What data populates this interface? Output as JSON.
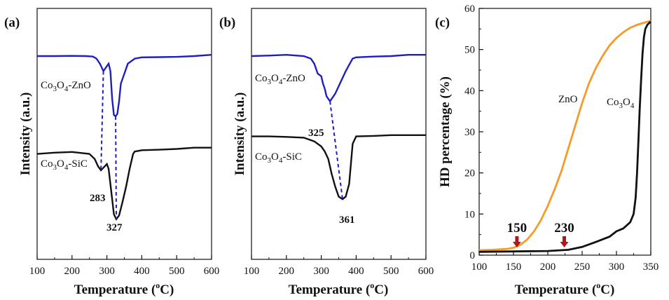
{
  "chart_data": [
    {
      "type": "line",
      "panel_label": "(a)",
      "xlabel": "Temperature (",
      "xlabel_sup": "o",
      "xlabel_end": "C)",
      "ylabel": "Intensity (a.u.)",
      "xlim": [
        100,
        600
      ],
      "xticks": [
        "100",
        "200",
        "300",
        "400",
        "500",
        "600"
      ],
      "series": [
        {
          "name": "Co3O4-ZnO",
          "color": "#1f1fbf",
          "x": [
            100,
            150,
            200,
            240,
            260,
            270,
            280,
            290,
            300,
            305,
            310,
            315,
            320,
            325,
            330,
            335,
            340,
            350,
            360,
            380,
            400,
            450,
            500,
            550,
            600
          ],
          "y": [
            0.81,
            0.81,
            0.811,
            0.81,
            0.808,
            0.8,
            0.78,
            0.75,
            0.77,
            0.78,
            0.75,
            0.64,
            0.575,
            0.57,
            0.58,
            0.63,
            0.7,
            0.74,
            0.78,
            0.8,
            0.805,
            0.806,
            0.807,
            0.81,
            0.815
          ]
        },
        {
          "name": "Co3O4-SiC",
          "color": "#111111",
          "x": [
            100,
            150,
            200,
            250,
            265,
            275,
            283,
            290,
            300,
            305,
            310,
            315,
            320,
            327,
            335,
            345,
            355,
            365,
            375,
            380,
            390,
            400,
            450,
            500,
            550,
            600
          ],
          "y": [
            0.42,
            0.425,
            0.428,
            0.42,
            0.4,
            0.37,
            0.355,
            0.365,
            0.38,
            0.36,
            0.3,
            0.24,
            0.18,
            0.16,
            0.175,
            0.23,
            0.29,
            0.36,
            0.42,
            0.43,
            0.432,
            0.435,
            0.437,
            0.44,
            0.445,
            0.445
          ]
        }
      ],
      "annotations": [
        {
          "text": "283",
          "x": 283
        },
        {
          "text": "327",
          "x": 327
        }
      ],
      "series_labels": [
        {
          "main": "Co",
          "sub1": "3",
          "mid": "O",
          "sub2": "4",
          "tail": "-ZnO"
        },
        {
          "main": "Co",
          "sub1": "3",
          "mid": "O",
          "sub2": "4",
          "tail": "-SiC"
        }
      ]
    },
    {
      "type": "line",
      "panel_label": "(b)",
      "xlabel": "Temperature (",
      "xlabel_sup": "o",
      "xlabel_end": "C)",
      "ylabel": "Intensity (a.u.)",
      "xlim": [
        100,
        600
      ],
      "xticks": [
        "100",
        "200",
        "300",
        "400",
        "500",
        "600"
      ],
      "series": [
        {
          "name": "Co3O4-ZnO",
          "color": "#1f1fbf",
          "x": [
            100,
            150,
            200,
            250,
            270,
            280,
            290,
            300,
            305,
            310,
            315,
            320,
            325,
            330,
            340,
            350,
            360,
            370,
            380,
            390,
            400,
            450,
            500,
            550,
            600
          ],
          "y": [
            0.81,
            0.812,
            0.815,
            0.81,
            0.8,
            0.78,
            0.74,
            0.73,
            0.7,
            0.68,
            0.65,
            0.64,
            0.63,
            0.64,
            0.66,
            0.69,
            0.72,
            0.75,
            0.775,
            0.8,
            0.805,
            0.808,
            0.81,
            0.815,
            0.815
          ]
        },
        {
          "name": "Co3O4-SiC",
          "color": "#111111",
          "x": [
            100,
            150,
            200,
            250,
            280,
            300,
            310,
            320,
            330,
            340,
            350,
            361,
            370,
            380,
            385,
            390,
            400,
            450,
            500,
            550,
            600
          ],
          "y": [
            0.49,
            0.49,
            0.488,
            0.485,
            0.47,
            0.45,
            0.43,
            0.4,
            0.34,
            0.29,
            0.25,
            0.24,
            0.25,
            0.3,
            0.38,
            0.46,
            0.49,
            0.492,
            0.495,
            0.495,
            0.495
          ]
        }
      ],
      "annotations": [
        {
          "text": "325",
          "x": 325
        },
        {
          "text": "361",
          "x": 361
        }
      ],
      "series_labels": [
        {
          "main": "Co",
          "sub1": "3",
          "mid": "O",
          "sub2": "4",
          "tail": "-ZnO"
        },
        {
          "main": "Co",
          "sub1": "3",
          "mid": "O",
          "sub2": "4",
          "tail": "-SiC"
        }
      ]
    },
    {
      "type": "line",
      "panel_label": "(c)",
      "xlabel": "Temperature (",
      "xlabel_sup": "o",
      "xlabel_end": "C)",
      "ylabel": "HD percentage (%)",
      "xlim": [
        100,
        350
      ],
      "ylim": [
        0,
        60
      ],
      "xticks": [
        "100",
        "150",
        "200",
        "250",
        "300",
        "350"
      ],
      "yticks": [
        "0",
        "10",
        "20",
        "30",
        "40",
        "50",
        "60"
      ],
      "series": [
        {
          "name": "ZnO",
          "color": "#f39c2a",
          "x": [
            100,
            120,
            140,
            150,
            160,
            170,
            180,
            190,
            200,
            210,
            220,
            230,
            240,
            250,
            260,
            270,
            280,
            290,
            300,
            310,
            320,
            330,
            340,
            350
          ],
          "y": [
            1.2,
            1.3,
            1.5,
            1.8,
            2.5,
            3.8,
            5.8,
            8.5,
            12.0,
            16.0,
            20.5,
            26.0,
            31.5,
            37.0,
            41.8,
            45.5,
            48.5,
            51.0,
            52.8,
            54.2,
            55.3,
            56.0,
            56.5,
            57.0
          ]
        },
        {
          "name": "Co3O4",
          "color": "#111111",
          "x": [
            100,
            150,
            200,
            230,
            250,
            270,
            290,
            300,
            310,
            320,
            325,
            328,
            330,
            332,
            334,
            336,
            338,
            340,
            342,
            345,
            348,
            350
          ],
          "y": [
            0.8,
            0.9,
            1.0,
            1.3,
            2.0,
            3.2,
            4.5,
            5.8,
            6.5,
            8.0,
            10.0,
            14.0,
            20.0,
            28.0,
            36.0,
            43.0,
            49.0,
            53.0,
            55.0,
            56.0,
            56.5,
            56.8
          ]
        }
      ],
      "series_labels": [
        {
          "text": "ZnO"
        },
        {
          "main": "Co",
          "sub1": "3",
          "mid": "O",
          "sub2": "4",
          "tail": ""
        }
      ],
      "arrows": [
        {
          "text": "150",
          "x": 155,
          "color": "#b01818"
        },
        {
          "text": "230",
          "x": 224,
          "color": "#b01818"
        }
      ]
    }
  ]
}
